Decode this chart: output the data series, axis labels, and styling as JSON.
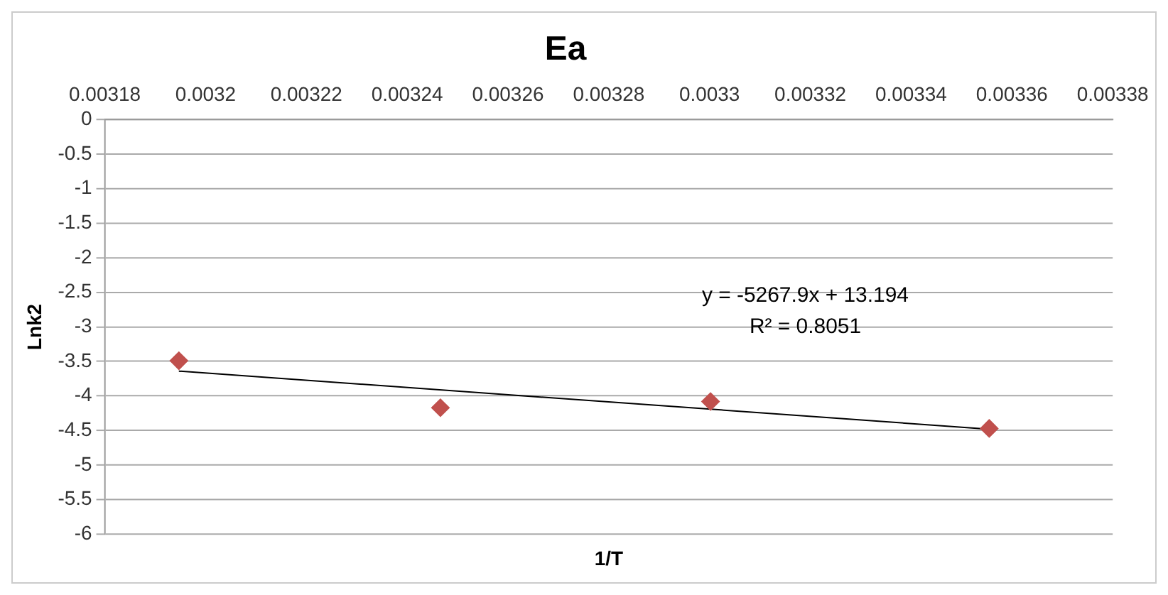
{
  "chart_data": {
    "type": "scatter",
    "title": "Ea",
    "xlabel": "1/T",
    "ylabel": "Lnk2",
    "series": [
      {
        "color": "#c0504d",
        "x": [
          0.0031947,
          0.0032466,
          0.0033002,
          0.0033555
        ],
        "values": [
          -3.49,
          -4.17,
          -4.08,
          -4.47
        ],
        "marker": "diamond"
      },
      {
        "type": "line",
        "color": "#000000",
        "x": [
          0.0031947,
          0.0033555
        ],
        "values": [
          -3.64,
          -4.48
        ],
        "marker": "none"
      }
    ],
    "annotations": [
      "y = -5267.9x + 13.194",
      "R² = 0.8051"
    ],
    "xlim": [
      0.00318,
      0.00338
    ],
    "xticks": [
      0.00318,
      0.0032,
      0.00322,
      0.00324,
      0.00326,
      0.00328,
      0.0033,
      0.00332,
      0.00334,
      0.00336,
      0.00338
    ],
    "ylim": [
      -6,
      0
    ],
    "yticks": [
      0,
      -0.5,
      -1,
      -1.5,
      -2,
      -2.5,
      -3,
      -3.5,
      -4,
      -4.5,
      -5,
      -5.5,
      -6
    ],
    "grid": "y",
    "legend": false
  }
}
